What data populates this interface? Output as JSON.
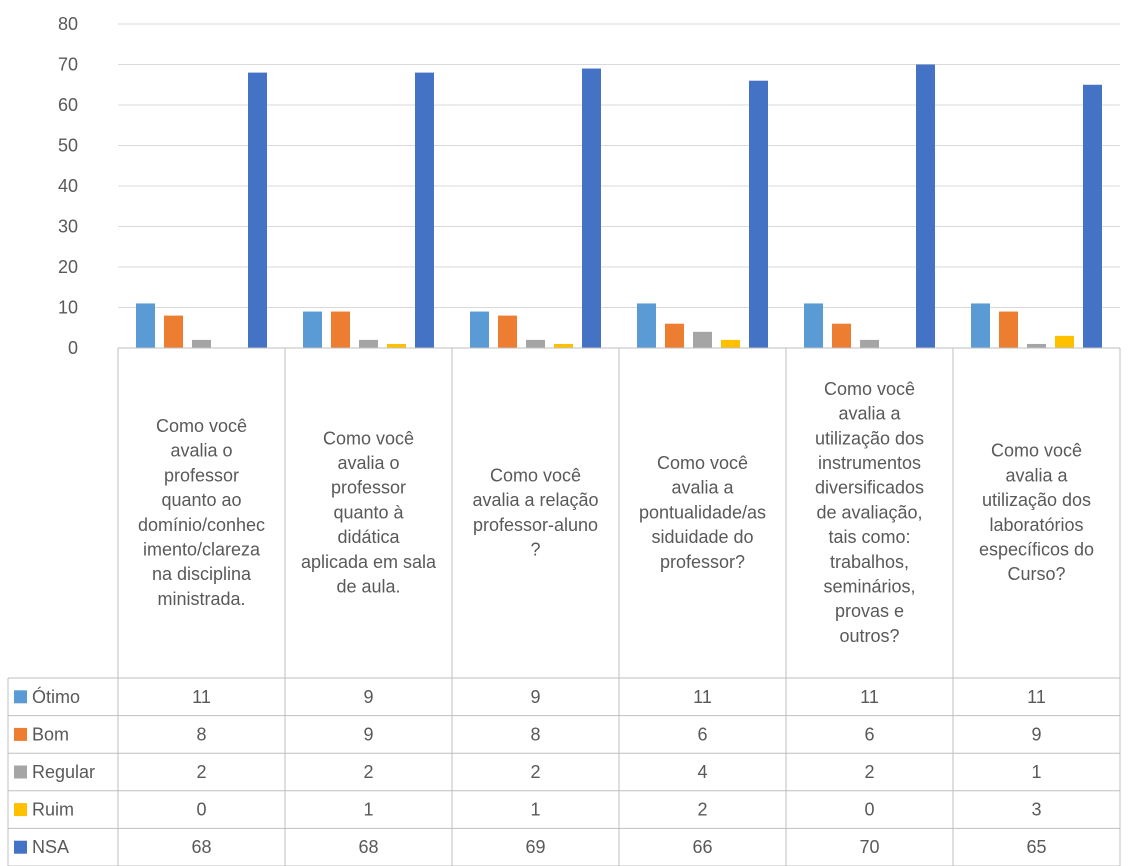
{
  "chart_data": {
    "type": "bar",
    "categories": [
      "Como você avalia o professor quanto ao domínio/conhecimento/clareza na disciplina ministrada.",
      "Como você avalia o professor quanto à didática aplicada em sala de aula.",
      "Como você avalia a relação professor-aluno?",
      "Como você avalia a pontualidade/assiduidade do professor?",
      "Como você avalia a utilização dos instrumentos diversificados de avaliação, tais como: trabalhos, seminários, provas e outros?",
      "Como você avalia a utilização dos laboratórios específicos do Curso?"
    ],
    "category_lines": [
      [
        "Como você",
        "avalia o",
        "professor",
        "quanto ao",
        "domínio/conhec",
        "imento/clareza",
        "na disciplina",
        "ministrada."
      ],
      [
        "Como você",
        "avalia o",
        "professor",
        "quanto à",
        "didática",
        "aplicada em sala",
        "de aula."
      ],
      [
        "Como você",
        "avalia a relação",
        "professor-aluno",
        "?"
      ],
      [
        "Como você",
        "avalia a",
        "pontualidade/as",
        "siduidade do",
        "professor?"
      ],
      [
        "Como você",
        "avalia a",
        "utilização dos",
        "instrumentos",
        "diversificados",
        "de avaliação,",
        "tais como:",
        "trabalhos,",
        "seminários,",
        "provas e",
        "outros?"
      ],
      [
        "Como você",
        "avalia a",
        "utilização dos",
        "laboratórios",
        "específicos do",
        "Curso?"
      ]
    ],
    "series": [
      {
        "name": "Ótimo",
        "color": "#5B9BD5",
        "values": [
          11,
          9,
          9,
          11,
          11,
          11
        ]
      },
      {
        "name": "Bom",
        "color": "#ED7D31",
        "values": [
          8,
          9,
          8,
          6,
          6,
          9
        ]
      },
      {
        "name": "Regular",
        "color": "#A5A5A5",
        "values": [
          2,
          2,
          2,
          4,
          2,
          1
        ]
      },
      {
        "name": "Ruim",
        "color": "#FFC000",
        "values": [
          0,
          1,
          1,
          2,
          0,
          3
        ]
      },
      {
        "name": "NSA",
        "color": "#4472C4",
        "values": [
          68,
          68,
          69,
          66,
          70,
          65
        ]
      }
    ],
    "ylim": [
      0,
      80
    ],
    "yticks": [
      0,
      10,
      20,
      30,
      40,
      50,
      60,
      70,
      80
    ],
    "grid": true,
    "legend": "data-table-left",
    "title": "",
    "xlabel": "",
    "ylabel": ""
  }
}
